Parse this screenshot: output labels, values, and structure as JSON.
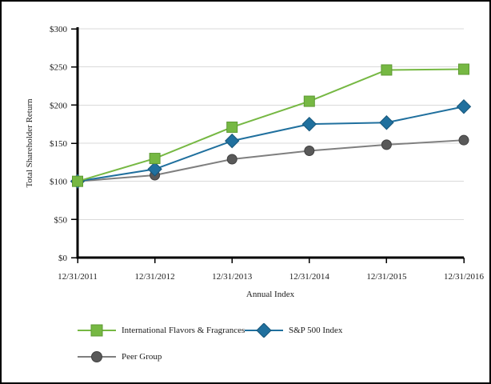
{
  "figure": {
    "background": "#ffffff",
    "border_color": "#000000",
    "text_color": "#1a1a1a",
    "grid_color": "#dadada",
    "axis_color": "#000000"
  },
  "chart_data": {
    "type": "line",
    "title": "",
    "xlabel": "Annual Index",
    "ylabel": "Total Shareholder Return",
    "categories": [
      "12/31/2011",
      "12/31/2012",
      "12/31/2013",
      "12/31/2014",
      "12/31/2015",
      "12/31/2016"
    ],
    "ylim": [
      0,
      300
    ],
    "y_tick_step": 50,
    "y_tick_labels": [
      "$0",
      "$50",
      "$100",
      "$150",
      "$200",
      "$250",
      "$300"
    ],
    "grid": true,
    "legend_position": "bottom-left",
    "series": [
      {
        "name": "International Flavors & Fragrances",
        "marker": "square",
        "color": "#76b843",
        "marker_color": "#76b843",
        "marker_stroke": "#5e9a33",
        "values": [
          100,
          130,
          171,
          205,
          246,
          247
        ]
      },
      {
        "name": "S&P 500 Index",
        "marker": "diamond",
        "color": "#20709e",
        "marker_color": "#20709e",
        "marker_stroke": "#17567a",
        "values": [
          100,
          116,
          153,
          175,
          177,
          198
        ]
      },
      {
        "name": "Peer Group",
        "marker": "circle",
        "color": "#7f7f7f",
        "marker_color": "#595959",
        "marker_stroke": "#404040",
        "values": [
          100,
          108,
          129,
          140,
          148,
          154
        ]
      }
    ]
  }
}
